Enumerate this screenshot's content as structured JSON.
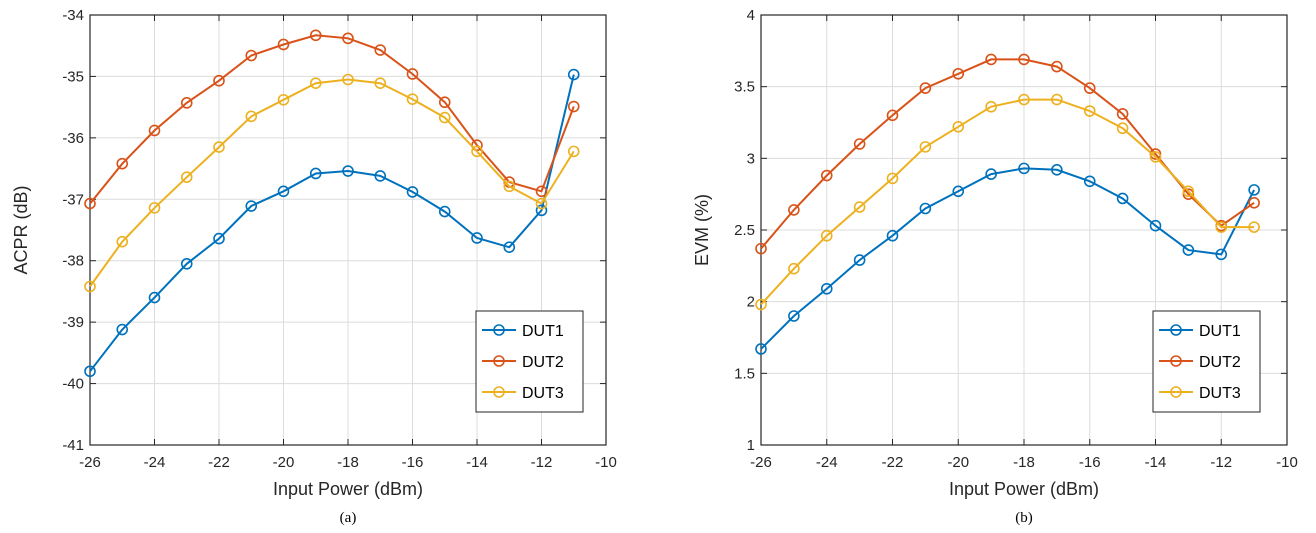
{
  "chart_data": [
    {
      "type": "line",
      "caption": "(a)",
      "xlabel": "Input Power (dBm)",
      "ylabel": "ACPR (dB)",
      "xlim": [
        -26,
        -10
      ],
      "ylim": [
        -41,
        -34
      ],
      "xticks": [
        -26,
        -24,
        -22,
        -20,
        -18,
        -16,
        -14,
        -12,
        -10
      ],
      "yticks": [
        -41,
        -40,
        -39,
        -38,
        -37,
        -36,
        -35,
        -34
      ],
      "grid": true,
      "legend_position": "bottom-right",
      "x": [
        -26,
        -25,
        -24,
        -23,
        -22,
        -21,
        -20,
        -19,
        -18,
        -17,
        -16,
        -15,
        -14,
        -13,
        -12,
        -11
      ],
      "series": [
        {
          "name": "DUT1",
          "color": "#0072BD",
          "values": [
            -39.8,
            -39.12,
            -38.6,
            -38.05,
            -37.64,
            -37.11,
            -36.87,
            -36.58,
            -36.54,
            -36.62,
            -36.88,
            -37.2,
            -37.63,
            -37.78,
            -37.18,
            -34.97
          ]
        },
        {
          "name": "DUT2",
          "color": "#D95319",
          "values": [
            -37.07,
            -36.42,
            -35.88,
            -35.43,
            -35.07,
            -34.66,
            -34.48,
            -34.33,
            -34.38,
            -34.57,
            -34.96,
            -35.42,
            -36.12,
            -36.72,
            -36.87,
            -35.49
          ]
        },
        {
          "name": "DUT3",
          "color": "#EDB120",
          "values": [
            -38.42,
            -37.69,
            -37.14,
            -36.64,
            -36.15,
            -35.65,
            -35.38,
            -35.11,
            -35.05,
            -35.11,
            -35.37,
            -35.67,
            -36.22,
            -36.79,
            -37.07,
            -36.22
          ]
        }
      ]
    },
    {
      "type": "line",
      "caption": "(b)",
      "xlabel": "Input Power (dBm)",
      "ylabel": "EVM (%)",
      "xlim": [
        -26,
        -10
      ],
      "ylim": [
        1,
        4
      ],
      "xticks": [
        -26,
        -24,
        -22,
        -20,
        -18,
        -16,
        -14,
        -12,
        -10
      ],
      "yticks": [
        1,
        1.5,
        2,
        2.5,
        3,
        3.5,
        4
      ],
      "grid": true,
      "legend_position": "bottom-right",
      "x": [
        -26,
        -25,
        -24,
        -23,
        -22,
        -21,
        -20,
        -19,
        -18,
        -17,
        -16,
        -15,
        -14,
        -13,
        -12,
        -11
      ],
      "series": [
        {
          "name": "DUT1",
          "color": "#0072BD",
          "values": [
            1.67,
            1.9,
            2.09,
            2.29,
            2.46,
            2.65,
            2.77,
            2.89,
            2.93,
            2.92,
            2.84,
            2.72,
            2.53,
            2.36,
            2.33,
            2.78
          ]
        },
        {
          "name": "DUT2",
          "color": "#D95319",
          "values": [
            2.37,
            2.64,
            2.88,
            3.1,
            3.3,
            3.49,
            3.59,
            3.69,
            3.69,
            3.64,
            3.49,
            3.31,
            3.03,
            2.75,
            2.53,
            2.69
          ]
        },
        {
          "name": "DUT3",
          "color": "#EDB120",
          "values": [
            1.98,
            2.23,
            2.46,
            2.66,
            2.86,
            3.08,
            3.22,
            3.36,
            3.41,
            3.41,
            3.33,
            3.21,
            3.01,
            2.77,
            2.52,
            2.52
          ]
        }
      ]
    }
  ]
}
